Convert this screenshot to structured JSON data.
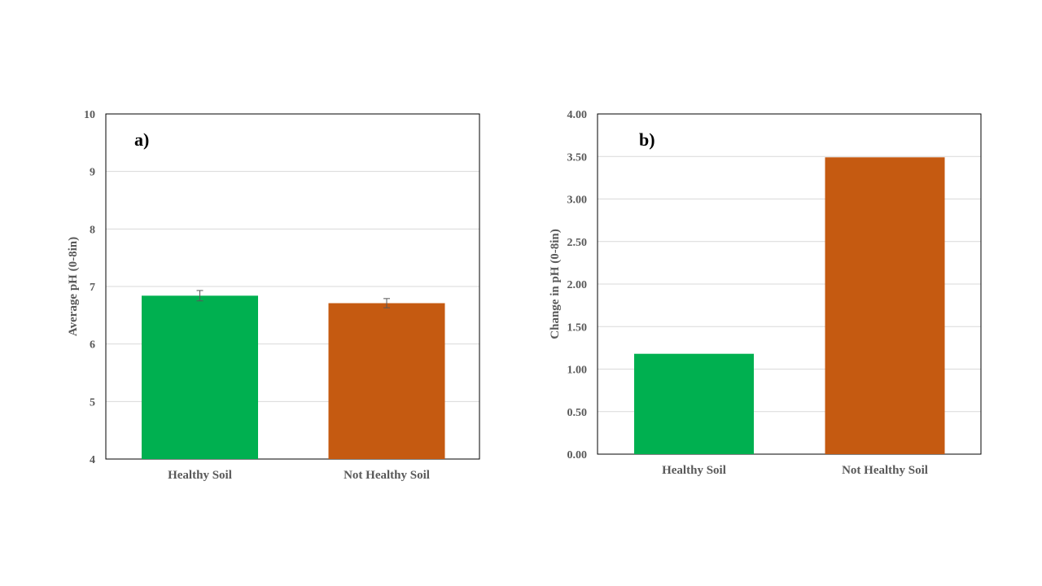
{
  "chart_data": [
    {
      "type": "bar",
      "panel_label": "a)",
      "categories": [
        "Healthy Soil",
        "Not Healthy Soil"
      ],
      "values": [
        6.84,
        6.71
      ],
      "errors": [
        0.09,
        0.08
      ],
      "colors": [
        "#00b050",
        "#c55a11"
      ],
      "ylabel": "Average pH (0-8in)",
      "ylim": [
        4,
        10
      ],
      "yticks": [
        "4",
        "5",
        "6",
        "7",
        "8",
        "9",
        "10"
      ],
      "grid": true
    },
    {
      "type": "bar",
      "panel_label": "b)",
      "categories": [
        "Healthy Soil",
        "Not Healthy Soil"
      ],
      "values": [
        1.18,
        3.49
      ],
      "colors": [
        "#00b050",
        "#c55a11"
      ],
      "ylabel": "Change in pH (0-8in)",
      "ylim": [
        0,
        4
      ],
      "yticks": [
        "0.00",
        "0.50",
        "1.00",
        "1.50",
        "2.00",
        "2.50",
        "3.00",
        "3.50",
        "4.00"
      ],
      "grid": true
    }
  ]
}
